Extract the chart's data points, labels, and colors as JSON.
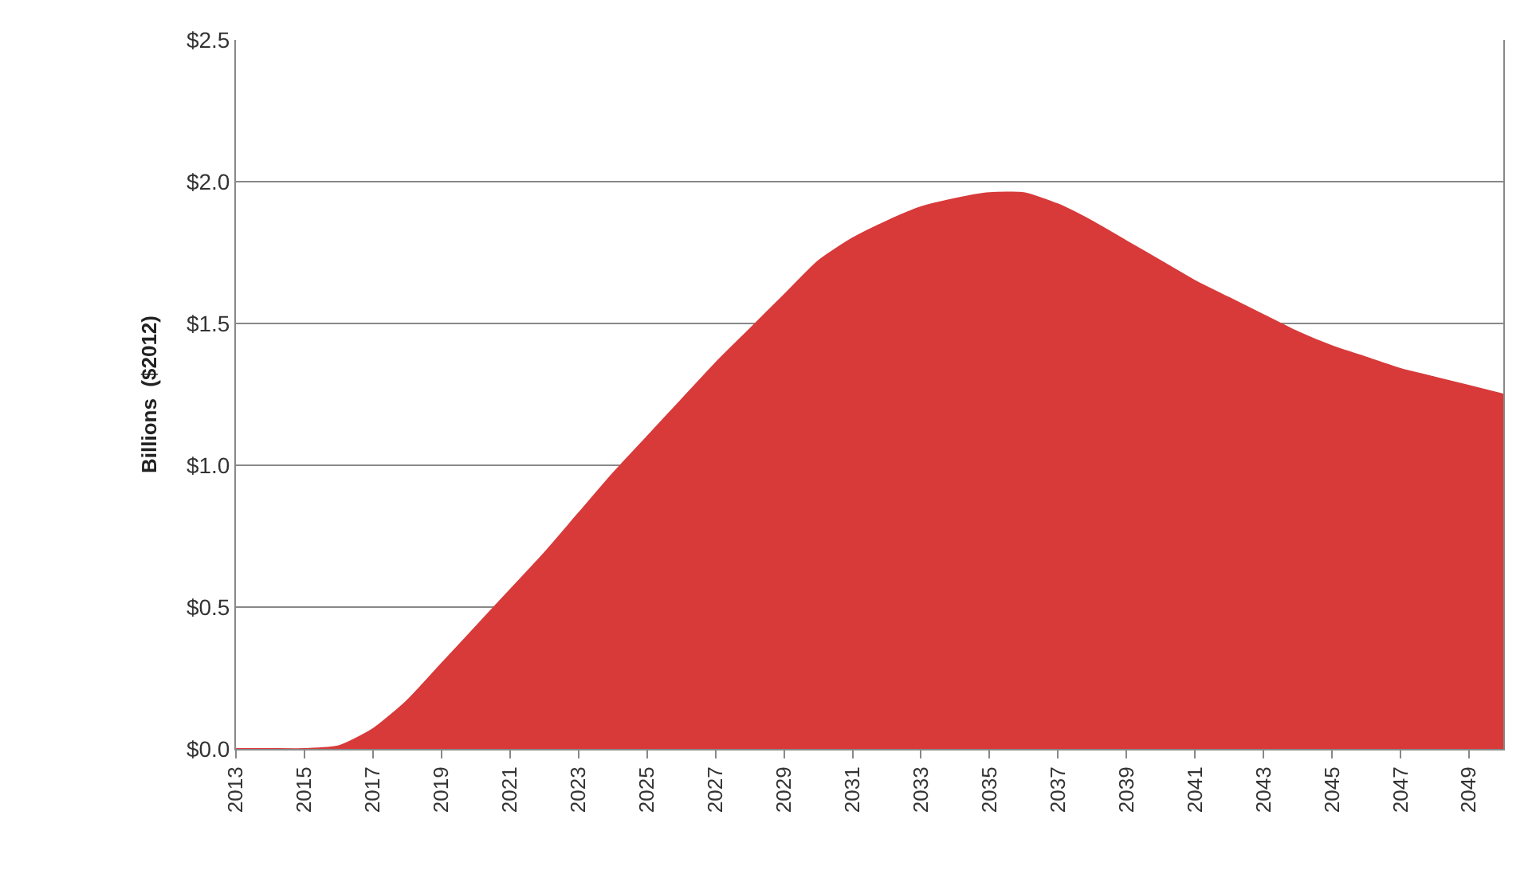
{
  "chart_data": {
    "type": "area",
    "ylabel": "Billions  ($2012)",
    "x": [
      2013,
      2014,
      2015,
      2016,
      2017,
      2018,
      2019,
      2020,
      2021,
      2022,
      2023,
      2024,
      2025,
      2026,
      2027,
      2028,
      2029,
      2030,
      2031,
      2032,
      2033,
      2034,
      2035,
      2036,
      2037,
      2038,
      2039,
      2040,
      2041,
      2042,
      2043,
      2044,
      2045,
      2046,
      2047,
      2048,
      2049,
      2050
    ],
    "series": [
      {
        "color": "#d83a3a",
        "values": [
          0,
          0,
          0,
          0.01,
          0.07,
          0.17,
          0.3,
          0.43,
          0.56,
          0.69,
          0.83,
          0.97,
          1.1,
          1.23,
          1.36,
          1.48,
          1.6,
          1.72,
          1.8,
          1.86,
          1.91,
          1.94,
          1.96,
          1.96,
          1.92,
          1.86,
          1.79,
          1.72,
          1.65,
          1.59,
          1.53,
          1.47,
          1.42,
          1.38,
          1.34,
          1.31,
          1.28,
          1.25
        ]
      }
    ],
    "xlim": [
      2013,
      2050
    ],
    "xticks": [
      2013,
      2015,
      2017,
      2019,
      2021,
      2023,
      2025,
      2027,
      2029,
      2031,
      2033,
      2035,
      2037,
      2039,
      2041,
      2043,
      2045,
      2047,
      2049
    ],
    "ylim": [
      0,
      2.5
    ],
    "yticks": [
      {
        "value": 0,
        "label": "$0.0"
      },
      {
        "value": 0.5,
        "label": "$0.5"
      },
      {
        "value": 1.0,
        "label": "$1.0"
      },
      {
        "value": 1.5,
        "label": "$1.5"
      },
      {
        "value": 2.0,
        "label": "$2.0"
      },
      {
        "value": 2.5,
        "label": "$2.5"
      }
    ],
    "grid": "y"
  }
}
